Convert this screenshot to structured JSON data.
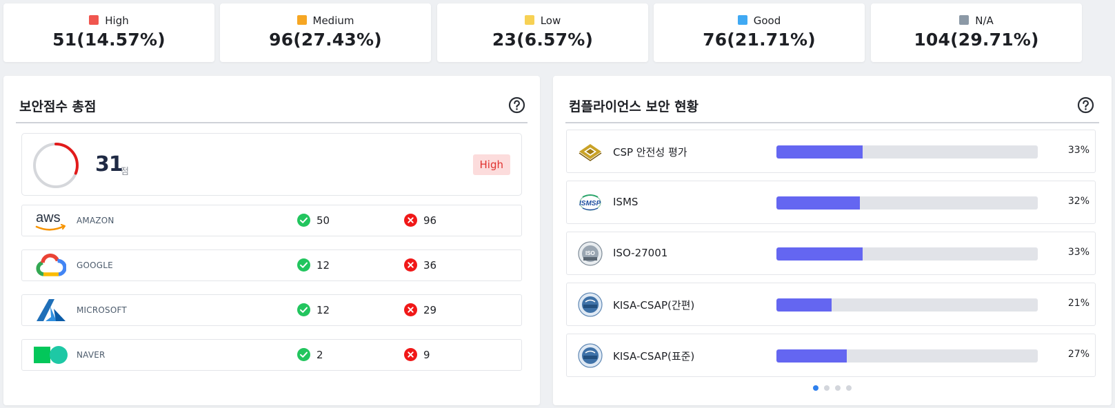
{
  "summary": [
    {
      "label": "High",
      "value": "51(14.57%)",
      "color": "#f0564f"
    },
    {
      "label": "Medium",
      "value": "96(27.43%)",
      "color": "#f6a623"
    },
    {
      "label": "Low",
      "value": "23(6.57%)",
      "color": "#f7d154"
    },
    {
      "label": "Good",
      "value": "76(21.71%)",
      "color": "#40a9f3"
    },
    {
      "label": "N/A",
      "value": "104(29.71%)",
      "color": "#8c99a6"
    }
  ],
  "score_panel": {
    "title": "보안점수 총점",
    "help_icon": "question-circle-icon",
    "score": "31",
    "score_unit": "점",
    "score_fraction": 0.31,
    "badge": "High",
    "providers": [
      {
        "name": "AMAZON",
        "logo": "aws-logo",
        "pass": "50",
        "fail": "96"
      },
      {
        "name": "GOOGLE",
        "logo": "google-cloud-logo",
        "pass": "12",
        "fail": "36"
      },
      {
        "name": "MICROSOFT",
        "logo": "azure-logo",
        "pass": "12",
        "fail": "29"
      },
      {
        "name": "NAVER",
        "logo": "naver-cloud-logo",
        "pass": "2",
        "fail": "9"
      }
    ]
  },
  "compliance_panel": {
    "title": "컴플라이언스 보안 현황",
    "help_icon": "question-circle-icon",
    "items": [
      {
        "name": "CSP 안전성 평가",
        "logo": "csp-logo",
        "percent": 33,
        "percent_label": "33%"
      },
      {
        "name": "ISMS",
        "logo": "isms-p-logo",
        "percent": 32,
        "percent_label": "32%"
      },
      {
        "name": "ISO-27001",
        "logo": "iso-27001-logo",
        "percent": 33,
        "percent_label": "33%"
      },
      {
        "name": "KISA-CSAP(간편)",
        "logo": "kisa-csap-logo",
        "percent": 21,
        "percent_label": "21%"
      },
      {
        "name": "KISA-CSAP(표준)",
        "logo": "kisa-csap-logo",
        "percent": 27,
        "percent_label": "27%"
      }
    ],
    "pager": {
      "pages": 4,
      "active": 0
    }
  },
  "colors": {
    "bar_fill": "#6466f1",
    "bar_track": "#e1e3e8",
    "pass": "#22c55e",
    "fail": "#f01818",
    "gauge": "#e21b1b",
    "badge_bg": "#fcdcdc",
    "badge_text": "#e0322f"
  }
}
